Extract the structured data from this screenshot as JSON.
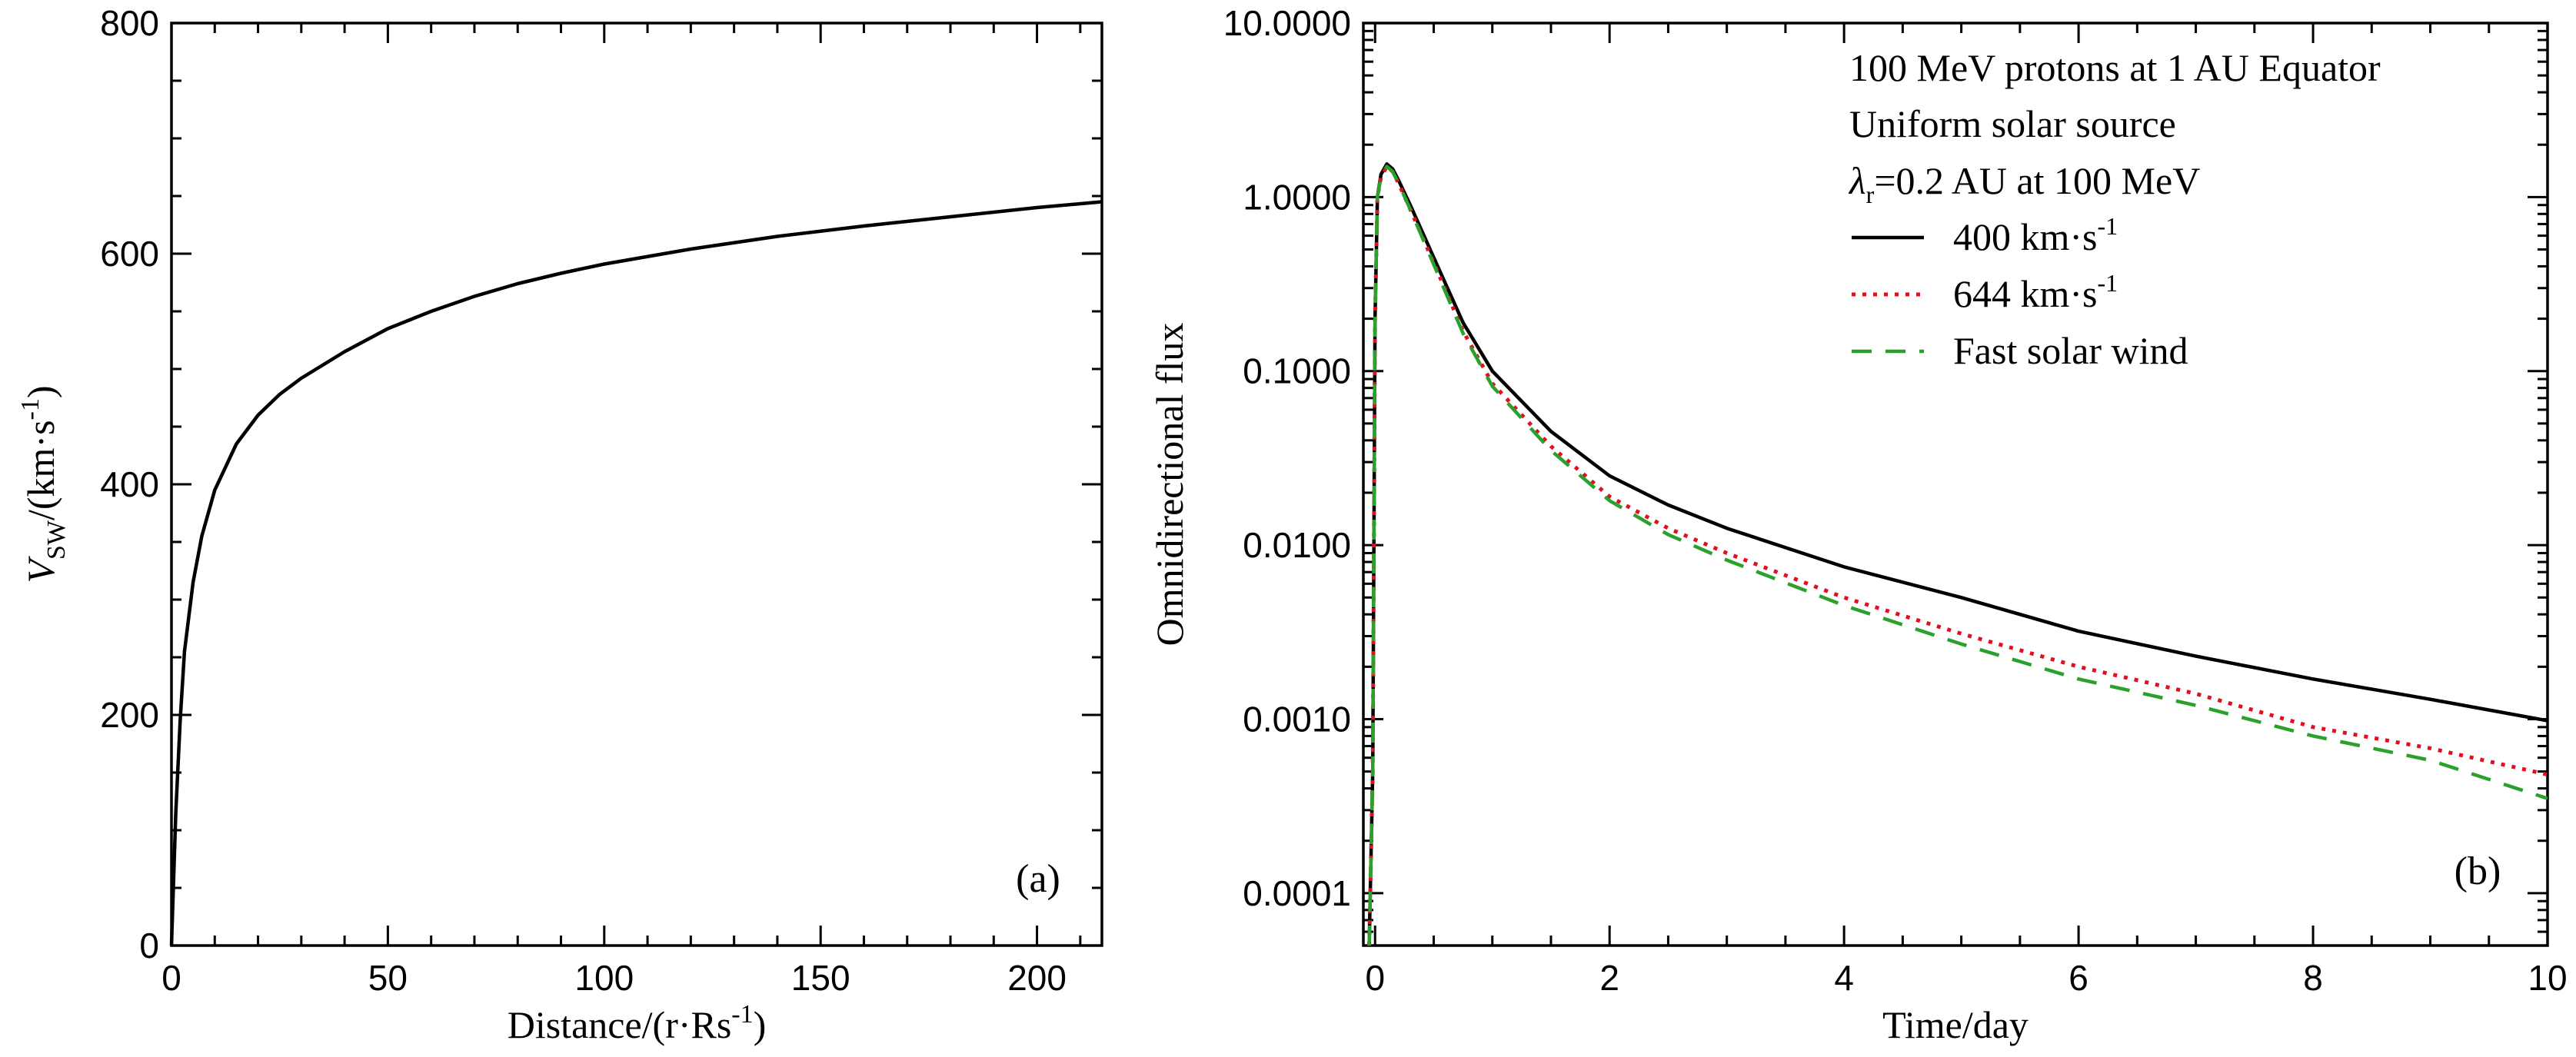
{
  "chart_data": [
    {
      "type": "line",
      "panel_label": "(a)",
      "xlabel_main": "Distance/(r·Rs",
      "xlabel_sup": "-1",
      "xlabel_close": ")",
      "ylabel_var": "V",
      "ylabel_sub": "SW",
      "ylabel_unit": "/(km·s",
      "ylabel_sup": "-1",
      "ylabel_close": ")",
      "xlim": [
        0,
        215
      ],
      "ylim": [
        0,
        800
      ],
      "xticks": [
        0,
        50,
        100,
        150,
        200
      ],
      "xtick_labels": [
        "0",
        "50",
        "100",
        "150",
        "200"
      ],
      "yticks": [
        0,
        200,
        400,
        600,
        800
      ],
      "ytick_labels": [
        "0",
        "200",
        "400",
        "600",
        "800"
      ],
      "x_minor_step": 10,
      "y_minor_step": 50,
      "series": [
        {
          "color": "#000000",
          "style": "solid",
          "x": [
            0,
            1,
            2,
            3,
            5,
            7,
            10,
            15,
            20,
            25,
            30,
            40,
            50,
            60,
            70,
            80,
            90,
            100,
            120,
            140,
            160,
            180,
            200,
            215
          ],
          "y": [
            0,
            115,
            195,
            255,
            315,
            355,
            395,
            435,
            460,
            478,
            492,
            515,
            535,
            550,
            563,
            574,
            583,
            591,
            604,
            615,
            624,
            632,
            640,
            645
          ]
        }
      ]
    },
    {
      "type": "line",
      "panel_label": "(b)",
      "xlabel": "Time/day",
      "ylabel": "Omnidirectional flux",
      "yscale": "log",
      "xlim": [
        -0.1,
        10
      ],
      "ylim": [
        5e-05,
        10
      ],
      "xticks": [
        0,
        2,
        4,
        6,
        8,
        10
      ],
      "xtick_labels": [
        "0",
        "2",
        "4",
        "6",
        "8",
        "10"
      ],
      "yticks": [
        0.0001,
        0.001,
        0.01,
        0.1,
        1,
        10
      ],
      "ytick_labels": [
        "0.0001",
        "0.0010",
        "0.0100",
        "0.1000",
        "1.0000",
        "10.0000"
      ],
      "x_minor_step": 0.5,
      "legend": {
        "placement": "top-right",
        "header_lines": [
          "100 MeV protons at 1 AU Equator",
          "Uniform solar source"
        ],
        "lambda_symbol": "λ",
        "lambda_sub": "r",
        "lambda_rest": "=0.2 AU at 100 MeV"
      },
      "series": [
        {
          "name_main": "400 km·s",
          "name_sup": "-1",
          "color": "#000000",
          "style": "solid",
          "x": [
            -0.05,
            -0.02,
            0.0,
            0.02,
            0.05,
            0.1,
            0.15,
            0.2,
            0.3,
            0.5,
            0.75,
            1.0,
            1.5,
            2.0,
            2.5,
            3.0,
            4.0,
            5.0,
            6.0,
            7.0,
            8.0,
            9.0,
            10.0
          ],
          "y": [
            5e-05,
            0.0005,
            0.2,
            1.0,
            1.35,
            1.55,
            1.45,
            1.25,
            0.9,
            0.45,
            0.19,
            0.1,
            0.045,
            0.025,
            0.017,
            0.0125,
            0.0075,
            0.005,
            0.0032,
            0.0023,
            0.0017,
            0.0013,
            0.00098
          ]
        },
        {
          "name_main": "644 km·s",
          "name_sup": "-1",
          "color": "#e0101e",
          "style": "dotted",
          "x": [
            -0.05,
            -0.02,
            0.0,
            0.02,
            0.05,
            0.1,
            0.15,
            0.2,
            0.3,
            0.5,
            0.75,
            1.0,
            1.5,
            2.0,
            2.5,
            3.0,
            4.0,
            5.0,
            6.0,
            7.0,
            8.0,
            9.0,
            10.0
          ],
          "y": [
            5e-05,
            0.0005,
            0.2,
            1.0,
            1.3,
            1.5,
            1.4,
            1.2,
            0.85,
            0.42,
            0.17,
            0.085,
            0.037,
            0.019,
            0.0125,
            0.009,
            0.005,
            0.0031,
            0.002,
            0.0014,
            0.0009,
            0.00068,
            0.00048
          ]
        },
        {
          "name_main": "Fast solar wind",
          "name_sup": "",
          "color": "#2ca02c",
          "style": "dashed",
          "x": [
            -0.05,
            -0.02,
            0.0,
            0.02,
            0.05,
            0.1,
            0.15,
            0.2,
            0.3,
            0.5,
            0.75,
            1.0,
            1.5,
            2.0,
            2.5,
            3.0,
            4.0,
            5.0,
            6.0,
            7.0,
            8.0,
            9.0,
            10.0
          ],
          "y": [
            5e-05,
            0.0005,
            0.2,
            1.0,
            1.3,
            1.5,
            1.4,
            1.2,
            0.85,
            0.41,
            0.165,
            0.082,
            0.035,
            0.018,
            0.0115,
            0.0082,
            0.0045,
            0.0027,
            0.0017,
            0.0012,
            0.0008,
            0.00058,
            0.00035
          ]
        }
      ]
    }
  ]
}
